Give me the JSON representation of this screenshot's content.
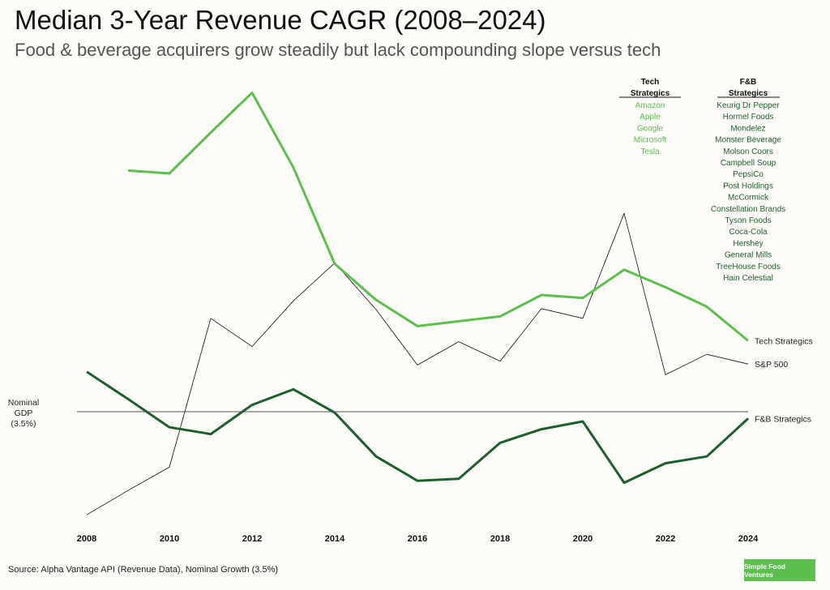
{
  "chart_data": {
    "type": "line",
    "title": "Median 3-Year Revenue CAGR (2008–2024)",
    "subtitle": "Food & beverage acquirers grow steadily but lack compounding slope versus tech",
    "x": [
      2008,
      2009,
      2010,
      2011,
      2012,
      2013,
      2014,
      2015,
      2016,
      2017,
      2018,
      2019,
      2020,
      2021,
      2022,
      2023,
      2024
    ],
    "x_tick_labels": [
      "2008",
      "2010",
      "2012",
      "2014",
      "2016",
      "2018",
      "2020",
      "2022",
      "2024"
    ],
    "y_axis_shown": false,
    "grid": false,
    "series": [
      {
        "name": "Tech Strategics",
        "color": "#5cbf4e",
        "values": [
          null,
          28.3,
          28.0,
          32.2,
          36.3,
          28.6,
          18.7,
          15.0,
          12.3,
          12.8,
          13.3,
          15.5,
          15.2,
          18.1,
          16.3,
          14.3,
          10.8
        ]
      },
      {
        "name": "S&P 500",
        "color": "#111111",
        "values": [
          -7.1,
          -4.6,
          -2.2,
          13.1,
          10.2,
          14.9,
          18.8,
          14.0,
          8.3,
          10.7,
          8.7,
          14.1,
          13.1,
          23.9,
          7.3,
          9.4,
          8.4
        ]
      },
      {
        "name": "F&B Strategics",
        "color": "#1f5e2f",
        "values": [
          7.6,
          4.8,
          1.9,
          1.2,
          4.2,
          5.8,
          3.4,
          -1.1,
          -3.6,
          -3.4,
          0.3,
          1.7,
          2.5,
          -3.8,
          -1.8,
          -1.1,
          2.8
        ]
      }
    ],
    "reference_line": {
      "value": 3.5,
      "label_lines": [
        "Nominal",
        "GDP",
        "(3.5%)"
      ],
      "color": "#555555"
    },
    "legend": {
      "placement": "top-right",
      "tech_header": [
        "Tech",
        "Strategics"
      ],
      "tech_items": [
        "Amazon",
        "Apple",
        "Google",
        "Microsoft",
        "Tesla"
      ],
      "fb_header": [
        "F&B",
        "Strategics"
      ],
      "fb_items": [
        "Keurig Dr Pepper",
        "Hormel Foods",
        "Mondelez",
        "Monster Beverage",
        "Molson Coors",
        "Campbell Soup",
        "PepsiCo",
        "Post Holdings",
        "McCormick",
        "Constellation Brands",
        "Tyson Foods",
        "Coca-Cola",
        "Hershey",
        "General Mills",
        "TreeHouse Foods",
        "Hain Celestial"
      ]
    }
  },
  "footer": {
    "source": "Source: Alpha Vantage API (Revenue Data), Nominal Growth (3.5%)",
    "brand": "Simple Food Ventures"
  }
}
